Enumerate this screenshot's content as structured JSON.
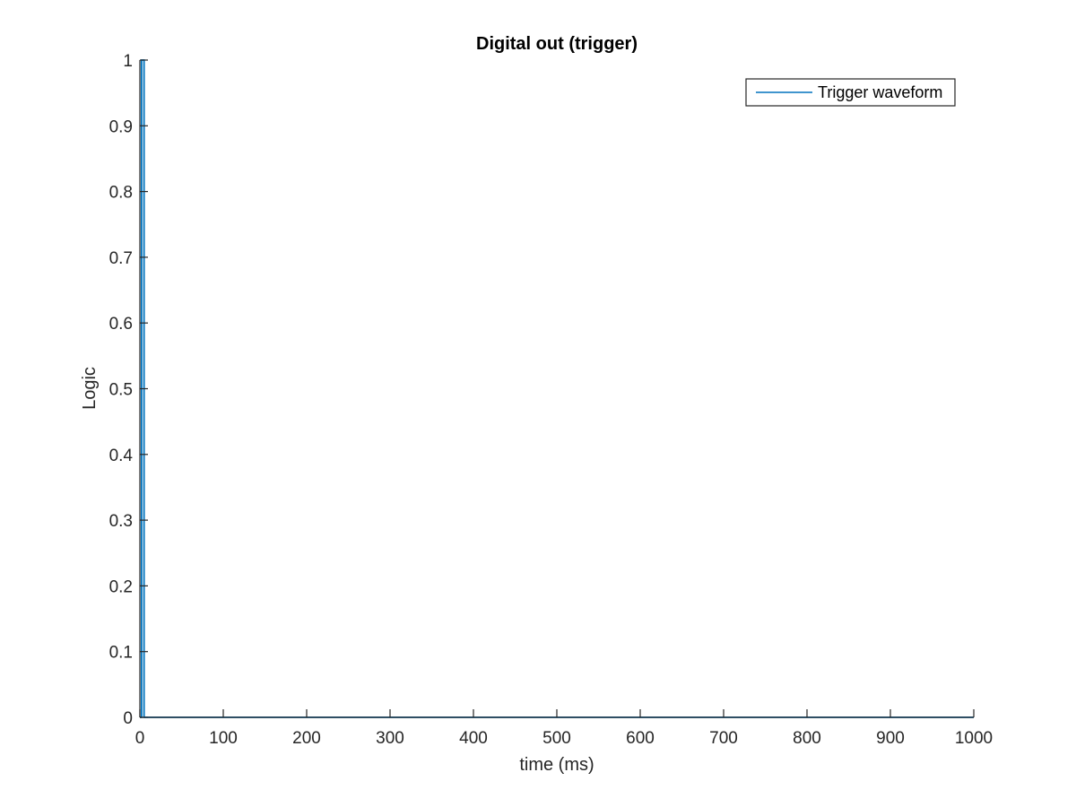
{
  "chart_data": {
    "type": "line",
    "title": "Digital out (trigger)",
    "xlabel": "time (ms)",
    "ylabel": "Logic",
    "xlim": [
      0,
      1000
    ],
    "ylim": [
      0,
      1
    ],
    "xticks": [
      0,
      100,
      200,
      300,
      400,
      500,
      600,
      700,
      800,
      900,
      1000
    ],
    "yticks": [
      0,
      0.1,
      0.2,
      0.3,
      0.4,
      0.5,
      0.6,
      0.7,
      0.8,
      0.9,
      1
    ],
    "xtick_labels": [
      "0",
      "100",
      "200",
      "300",
      "400",
      "500",
      "600",
      "700",
      "800",
      "900",
      "1000"
    ],
    "ytick_labels": [
      "0",
      "0.1",
      "0.2",
      "0.3",
      "0.4",
      "0.5",
      "0.6",
      "0.7",
      "0.8",
      "0.9",
      "1"
    ],
    "grid": false,
    "legend": "top-right",
    "series": [
      {
        "name": "Trigger waveform",
        "color": "#0072BD",
        "x": [
          0,
          2,
          2,
          5,
          5,
          1000
        ],
        "y": [
          0,
          0,
          1,
          1,
          0,
          0
        ]
      }
    ]
  }
}
